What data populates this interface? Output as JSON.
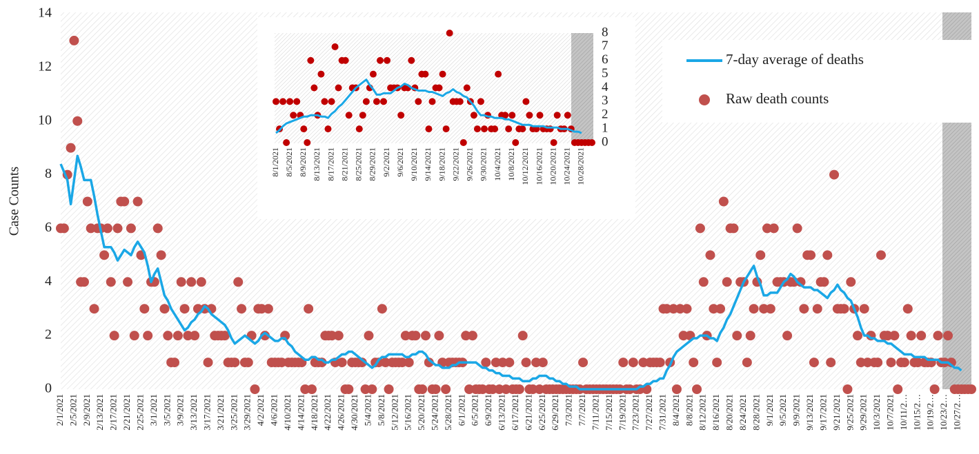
{
  "chart_data": [
    {
      "type": "line",
      "y_label": "Case Counts",
      "legend": "upper right",
      "categories": [
        "2/1/2021",
        null,
        null,
        null,
        "2/5/2021",
        null,
        null,
        null,
        "2/9/2021",
        null,
        null,
        null,
        "2/13/2021",
        null,
        null,
        null,
        "2/17/2021",
        null,
        null,
        null,
        "2/21/2021",
        null,
        null,
        null,
        "2/25/2021",
        null,
        null,
        null,
        "3/1/2021",
        null,
        null,
        null,
        "3/5/2021",
        null,
        null,
        null,
        "3/9/2021",
        null,
        null,
        null,
        "3/13/2021",
        null,
        null,
        null,
        "3/17/2021",
        null,
        null,
        null,
        "3/21/2021",
        null,
        null,
        null,
        "3/25/2021",
        null,
        null,
        null,
        "3/29/2021",
        null,
        null,
        null,
        "4/2/2021",
        null,
        null,
        null,
        "4/6/2021",
        null,
        null,
        null,
        "4/10/2021",
        null,
        null,
        null,
        "4/14/2021",
        null,
        null,
        null,
        "4/18/2021",
        null,
        null,
        null,
        "4/22/2021",
        null,
        null,
        null,
        "4/26/2021",
        null,
        null,
        null,
        "4/30/2021",
        null,
        null,
        null,
        "5/4/2021",
        null,
        null,
        null,
        "5/8/2021",
        null,
        null,
        null,
        "5/12/2021",
        null,
        null,
        null,
        "5/16/2021",
        null,
        null,
        null,
        "5/20/2021",
        null,
        null,
        null,
        "5/24/2021",
        null,
        null,
        null,
        "5/28/2021",
        null,
        null,
        null,
        "6/1/2021",
        null,
        null,
        null,
        "6/5/2021",
        null,
        null,
        null,
        "6/9/2021",
        null,
        null,
        null,
        "6/13/2021",
        null,
        null,
        null,
        "6/17/2021",
        null,
        null,
        null,
        "6/21/2021",
        null,
        null,
        null,
        "6/25/2021",
        null,
        null,
        null,
        "6/29/2021",
        null,
        null,
        null,
        "7/3/2021",
        null,
        null,
        null,
        "7/7/2021",
        null,
        null,
        null,
        "7/11/2021",
        null,
        null,
        null,
        "7/15/2021",
        null,
        null,
        null,
        "7/19/2021",
        null,
        null,
        null,
        "7/23/2021",
        null,
        null,
        null,
        "7/27/2021",
        null,
        null,
        null,
        "7/31/2021",
        null,
        null,
        null,
        "8/4/2021",
        null,
        null,
        null,
        "8/8/2021",
        null,
        null,
        null,
        "8/12/2021",
        null,
        null,
        null,
        "8/16/2021",
        null,
        null,
        null,
        "8/20/2021",
        null,
        null,
        null,
        "8/24/2021",
        null,
        null,
        null,
        "8/28/2021",
        null,
        null,
        null,
        "9/1/2021",
        null,
        null,
        null,
        "9/5/2021",
        null,
        null,
        null,
        "9/9/2021",
        null,
        null,
        null,
        "9/13/2021",
        null,
        null,
        null,
        "9/17/2021",
        null,
        null,
        null,
        "9/21/2021",
        null,
        null,
        null,
        "9/25/2021",
        null,
        null,
        null,
        "9/29/2021",
        null,
        null,
        null,
        "10/3/2021",
        null,
        null,
        null,
        "10/7/2021",
        null,
        null,
        null,
        "10/11/2…",
        null,
        null,
        null,
        "10/15/2…",
        null,
        null,
        null,
        "10/19/2…",
        null,
        null,
        null,
        "10/23/2…",
        null,
        null,
        null,
        "10/27/2…",
        null,
        null,
        null,
        null
      ],
      "series": [
        {
          "name": "7-day average of deaths",
          "type": "line",
          "color": "#1aa7e6",
          "values": [
            8.4,
            8.1,
            7.8,
            6.9,
            7.8,
            8.7,
            8.3,
            7.8,
            7.8,
            7.8,
            7.2,
            6.5,
            5.9,
            5.3,
            5.3,
            5.3,
            5.1,
            4.8,
            5.0,
            5.2,
            5.1,
            5.0,
            5.3,
            5.5,
            5.3,
            5.1,
            4.6,
            4.0,
            4.3,
            4.5,
            4.0,
            3.5,
            3.3,
            3.0,
            2.8,
            2.6,
            2.4,
            2.2,
            2.3,
            2.5,
            2.6,
            2.8,
            2.9,
            3.1,
            3.0,
            2.8,
            2.7,
            2.6,
            2.5,
            2.4,
            2.2,
            1.9,
            1.7,
            1.8,
            1.9,
            2.0,
            1.9,
            1.8,
            1.7,
            1.8,
            2.0,
            2.1,
            2.0,
            1.9,
            1.8,
            1.8,
            1.9,
            1.9,
            1.7,
            1.6,
            1.4,
            1.3,
            1.2,
            1.1,
            1.1,
            1.2,
            1.2,
            1.1,
            1.1,
            1.0,
            1.0,
            1.1,
            1.1,
            1.2,
            1.3,
            1.3,
            1.4,
            1.4,
            1.3,
            1.2,
            1.1,
            1.0,
            0.9,
            0.8,
            0.9,
            1.1,
            1.2,
            1.2,
            1.3,
            1.3,
            1.3,
            1.3,
            1.3,
            1.2,
            1.2,
            1.3,
            1.3,
            1.4,
            1.4,
            1.3,
            1.1,
            1.0,
            0.9,
            0.9,
            0.8,
            0.8,
            0.8,
            0.9,
            0.9,
            1.0,
            1.0,
            1.0,
            1.0,
            1.0,
            1.0,
            0.9,
            0.8,
            0.8,
            0.7,
            0.7,
            0.6,
            0.6,
            0.5,
            0.5,
            0.5,
            0.4,
            0.4,
            0.4,
            0.3,
            0.3,
            0.3,
            0.4,
            0.4,
            0.5,
            0.5,
            0.5,
            0.4,
            0.4,
            0.3,
            0.3,
            0.2,
            0.2,
            0.1,
            0.1,
            0.1,
            0,
            0,
            0,
            0,
            0,
            0,
            0,
            0,
            0,
            0,
            0,
            0,
            0,
            0,
            0,
            0,
            0,
            0,
            0.1,
            0.1,
            0.2,
            0.2,
            0.3,
            0.3,
            0.4,
            0.4,
            0.7,
            0.9,
            1.2,
            1.4,
            1.5,
            1.6,
            1.7,
            1.8,
            1.9,
            1.9,
            2.0,
            2.0,
            2.0,
            1.9,
            1.9,
            1.8,
            2.1,
            2.3,
            2.6,
            2.8,
            3.1,
            3.4,
            3.7,
            4.0,
            4.2,
            4.4,
            4.6,
            4.2,
            3.9,
            3.5,
            3.5,
            3.6,
            3.6,
            3.6,
            3.8,
            4.0,
            4.1,
            4.3,
            4.2,
            4.0,
            3.9,
            3.8,
            3.8,
            3.8,
            3.7,
            3.7,
            3.6,
            3.5,
            3.4,
            3.6,
            3.7,
            3.9,
            3.7,
            3.6,
            3.4,
            3.3,
            3.0,
            2.7,
            2.3,
            2.0,
            2.0,
            1.9,
            1.9,
            1.8,
            1.8,
            1.8,
            1.7,
            1.7,
            1.6,
            1.5,
            1.4,
            1.3,
            1.3,
            1.3,
            1.2,
            1.2,
            1.2,
            1.2,
            1.1,
            1.1,
            1.1,
            1.1,
            1.0,
            1.0,
            1.0,
            0.9,
            0.8,
            0.8,
            0.7,
            null,
            null,
            null
          ]
        },
        {
          "name": "Raw death counts",
          "type": "scatter",
          "color": "#c0504d",
          "values": [
            6,
            6,
            8,
            9,
            13,
            10,
            4,
            4,
            7,
            6,
            3,
            6,
            6,
            5,
            6,
            4,
            2,
            6,
            7,
            7,
            4,
            6,
            2,
            7,
            5,
            3,
            2,
            4,
            4,
            6,
            5,
            3,
            2,
            1,
            1,
            2,
            4,
            3,
            2,
            4,
            2,
            3,
            4,
            3,
            1,
            3,
            2,
            2,
            2,
            2,
            1,
            1,
            1,
            4,
            3,
            1,
            1,
            2,
            0,
            3,
            3,
            2,
            3,
            1,
            1,
            1,
            1,
            2,
            1,
            1,
            1,
            1,
            1,
            0,
            3,
            0,
            1,
            1,
            1,
            2,
            2,
            2,
            1,
            2,
            1,
            0,
            0,
            1,
            1,
            1,
            1,
            0,
            2,
            0,
            1,
            1,
            3,
            1,
            0,
            1,
            1,
            1,
            1,
            2,
            1,
            2,
            2,
            0,
            0,
            2,
            1,
            0,
            0,
            2,
            1,
            0,
            1,
            1,
            1,
            1,
            1,
            2,
            0,
            2,
            0,
            0,
            0,
            1,
            0,
            0,
            1,
            0,
            1,
            0,
            1,
            0,
            0,
            0,
            2,
            1,
            0,
            0,
            1,
            0,
            1,
            0,
            0,
            0,
            0,
            0,
            0,
            0,
            0,
            0,
            0,
            0,
            1,
            0,
            0,
            0,
            0,
            0,
            0,
            0,
            0,
            0,
            0,
            0,
            1,
            0,
            0,
            1,
            0,
            0,
            1,
            0,
            1,
            1,
            1,
            1,
            3,
            3,
            1,
            3,
            0,
            3,
            2,
            3,
            2,
            1,
            0,
            6,
            4,
            2,
            5,
            3,
            1,
            3,
            7,
            4,
            6,
            6,
            2,
            4,
            4,
            1,
            2,
            3,
            4,
            5,
            3,
            6,
            3,
            6,
            4,
            4,
            4,
            2,
            4,
            4,
            6,
            4,
            3,
            5,
            5,
            1,
            3,
            4,
            4,
            5,
            1,
            8,
            3,
            3,
            3,
            0,
            4,
            3,
            2,
            1,
            3,
            1,
            2,
            1,
            1,
            5,
            2,
            2,
            1,
            2,
            0,
            1,
            1,
            3,
            2,
            1,
            1,
            2,
            1,
            1,
            1,
            0,
            2,
            1,
            1,
            2,
            1,
            0,
            0,
            0,
            0,
            0,
            0
          ]
        }
      ],
      "ylim": [
        0,
        14
      ],
      "yticks": [
        0,
        2,
        4,
        6,
        8,
        10,
        12,
        14
      ]
    },
    {
      "type": "line",
      "categories": [
        "8/1/2021",
        null,
        null,
        null,
        "8/5/2021",
        null,
        null,
        null,
        "8/9/2021",
        null,
        null,
        null,
        "8/13/2021",
        null,
        null,
        null,
        "8/17/2021",
        null,
        null,
        null,
        "8/21/2021",
        null,
        null,
        null,
        "8/25/2021",
        null,
        null,
        null,
        "8/29/2021",
        null,
        null,
        null,
        "9/2/2021",
        null,
        null,
        null,
        "9/6/2021",
        null,
        null,
        null,
        "9/10/2021",
        null,
        null,
        null,
        "9/14/2021",
        null,
        null,
        null,
        "9/18/2021",
        null,
        null,
        null,
        "9/22/2021",
        null,
        null,
        null,
        "9/26/2021",
        null,
        null,
        null,
        "9/30/2021",
        null,
        null,
        null,
        "10/4/2021",
        null,
        null,
        null,
        "10/8/2021",
        null,
        null,
        null,
        "10/12/2021",
        null,
        null,
        null,
        "10/16/2021",
        null,
        null,
        null,
        "10/20/2021",
        null,
        null,
        null,
        "10/24/2021",
        null,
        null,
        null,
        "10/28/2021",
        null,
        null,
        null
      ],
      "series": [
        {
          "name": "7-day average of deaths",
          "type": "line",
          "color": "#1aa7e6",
          "values": [
            0.7,
            0.9,
            1.2,
            1.4,
            1.5,
            1.6,
            1.7,
            1.8,
            1.9,
            1.9,
            2.0,
            2.0,
            2.0,
            1.9,
            1.9,
            1.8,
            2.1,
            2.3,
            2.6,
            2.8,
            3.1,
            3.4,
            3.7,
            4.0,
            4.2,
            4.4,
            4.6,
            4.2,
            3.9,
            3.5,
            3.5,
            3.6,
            3.6,
            3.6,
            3.8,
            4.0,
            4.1,
            4.3,
            4.2,
            4.0,
            3.9,
            3.8,
            3.8,
            3.8,
            3.7,
            3.7,
            3.6,
            3.5,
            3.4,
            3.6,
            3.7,
            3.9,
            3.7,
            3.6,
            3.4,
            3.3,
            3.0,
            2.7,
            2.3,
            2.0,
            2.0,
            1.9,
            1.9,
            1.8,
            1.8,
            1.8,
            1.7,
            1.7,
            1.6,
            1.5,
            1.4,
            1.3,
            1.3,
            1.3,
            1.2,
            1.2,
            1.2,
            1.2,
            1.1,
            1.1,
            1.1,
            1.1,
            1.0,
            1.0,
            1.0,
            0.9,
            0.8,
            0.8,
            0.7,
            null,
            null,
            null
          ]
        },
        {
          "name": "Raw death counts",
          "type": "scatter",
          "color": "#c00000",
          "values": [
            3,
            1,
            3,
            0,
            3,
            2,
            3,
            2,
            1,
            0,
            6,
            4,
            2,
            5,
            3,
            1,
            3,
            7,
            4,
            6,
            6,
            2,
            4,
            4,
            1,
            2,
            3,
            4,
            5,
            3,
            6,
            3,
            6,
            4,
            4,
            4,
            2,
            4,
            4,
            6,
            4,
            3,
            5,
            5,
            1,
            3,
            4,
            4,
            5,
            1,
            8,
            3,
            3,
            3,
            0,
            4,
            3,
            2,
            1,
            3,
            1,
            2,
            1,
            1,
            5,
            2,
            2,
            1,
            2,
            0,
            1,
            1,
            3,
            2,
            1,
            1,
            2,
            1,
            1,
            1,
            0,
            2,
            1,
            1,
            2,
            1,
            0,
            0,
            0,
            0,
            0,
            0
          ]
        }
      ],
      "ylim": [
        0,
        8
      ],
      "yticks": [
        0,
        1,
        2,
        3,
        4,
        5,
        6,
        7,
        8
      ]
    }
  ]
}
